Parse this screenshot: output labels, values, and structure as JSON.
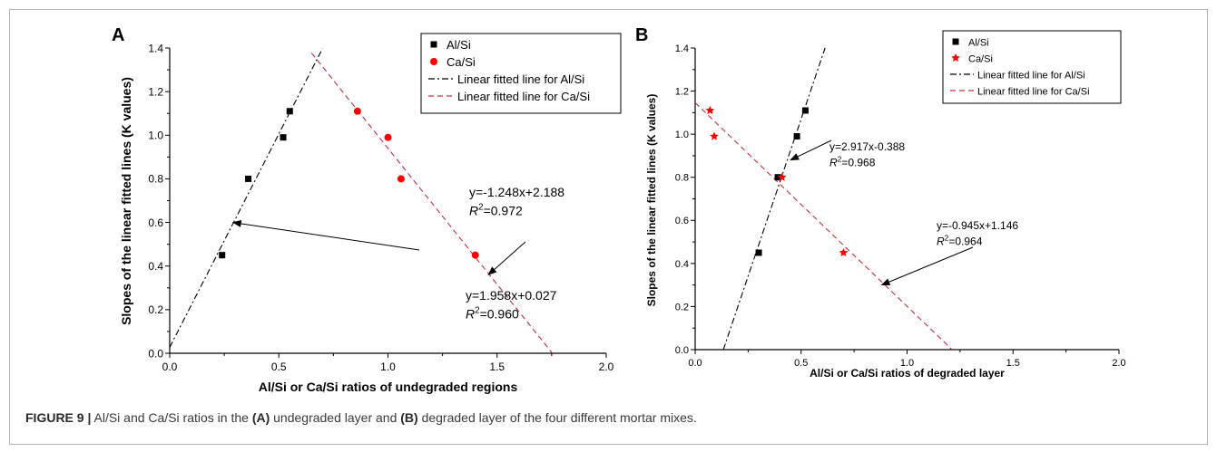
{
  "chart_data": [
    {
      "type": "scatter",
      "panel_label": "A",
      "xlabel": "Al/Si or Ca/Si ratios of undegraded regions",
      "ylabel": "Slopes of the  linear fitted lines (K values)",
      "xlim": [
        0.0,
        2.0
      ],
      "ylim": [
        0.0,
        1.4
      ],
      "x_ticks": [
        "0.0",
        "0.5",
        "1.0",
        "1.5",
        "2.0"
      ],
      "y_ticks": [
        "0.0",
        "0.2",
        "0.4",
        "0.6",
        "0.8",
        "1.0",
        "1.2",
        "1.4"
      ],
      "grid": false,
      "legend_position": "top-right",
      "series": [
        {
          "name": "Al/Si",
          "marker": "square",
          "color": "#000000",
          "points": [
            [
              0.24,
              0.45
            ],
            [
              0.36,
              0.8
            ],
            [
              0.52,
              0.99
            ],
            [
              0.55,
              1.11
            ]
          ]
        },
        {
          "name": "Ca/Si",
          "marker": "circle",
          "color": "#ff0000",
          "points": [
            [
              0.86,
              1.11
            ],
            [
              1.0,
              0.99
            ],
            [
              1.06,
              0.8
            ],
            [
              1.4,
              0.45
            ]
          ]
        }
      ],
      "fit_lines": [
        {
          "name": "Linear fitted line for Al/Si",
          "slope": 1.958,
          "intercept": 0.027,
          "color": "#000000",
          "dash": "dashdot",
          "x_range": [
            0.0,
            0.7
          ]
        },
        {
          "name": "Linear fitted line for Ca/Si",
          "slope": -1.248,
          "intercept": 2.188,
          "color": "#c0303c",
          "dash": "dash",
          "x_range": [
            0.65,
            1.753
          ]
        }
      ],
      "annotations": [
        {
          "eq": "y=1.958x+0.027",
          "r2_prefix": "R",
          "r2_sup": "2",
          "r2_value": "=0.960",
          "arrow_to": [
            0.29,
            0.6
          ]
        },
        {
          "eq": "y=-1.248x+2.188",
          "r2_prefix": "R",
          "r2_sup": "2",
          "r2_value": "=0.972",
          "arrow_to": [
            1.46,
            0.36
          ]
        }
      ]
    },
    {
      "type": "scatter",
      "panel_label": "B",
      "xlabel": "Al/Si or Ca/Si ratios of degraded layer",
      "ylabel": "Slopes of the  linear fitted lines (K values)",
      "xlim": [
        0.0,
        2.0
      ],
      "ylim": [
        0.0,
        1.4
      ],
      "x_ticks": [
        "0.0",
        "0.5",
        "1.0",
        "1.5",
        "2.0"
      ],
      "y_ticks": [
        "0.0",
        "0.2",
        "0.4",
        "0.6",
        "0.8",
        "1.0",
        "1.2",
        "1.4"
      ],
      "grid": false,
      "legend_position": "top-right",
      "series": [
        {
          "name": "Al/Si",
          "marker": "square",
          "color": "#000000",
          "points": [
            [
              0.3,
              0.45
            ],
            [
              0.39,
              0.8
            ],
            [
              0.48,
              0.99
            ],
            [
              0.52,
              1.11
            ]
          ]
        },
        {
          "name": "Ca/Si",
          "marker": "star",
          "color": "#ff0000",
          "points": [
            [
              0.07,
              1.11
            ],
            [
              0.09,
              0.99
            ],
            [
              0.41,
              0.8
            ],
            [
              0.7,
              0.45
            ]
          ]
        }
      ],
      "fit_lines": [
        {
          "name": "Linear fitted line for Al/Si",
          "slope": 2.917,
          "intercept": -0.388,
          "color": "#000000",
          "dash": "dashdot",
          "x_range": [
            0.133,
            0.613
          ]
        },
        {
          "name": "Linear fitted line for Ca/Si",
          "slope": -0.945,
          "intercept": 1.146,
          "color": "#c0303c",
          "dash": "dash",
          "x_range": [
            0.0,
            1.213
          ]
        }
      ],
      "annotations": [
        {
          "eq": "y=2.917x-0.388",
          "r2_prefix": "R",
          "r2_sup": "2",
          "r2_value": "=0.968",
          "arrow_to": [
            0.45,
            0.88
          ]
        },
        {
          "eq": "y=-0.945x+1.146",
          "r2_prefix": "R",
          "r2_sup": "2",
          "r2_value": "=0.964",
          "arrow_to": [
            0.88,
            0.3
          ]
        }
      ]
    }
  ],
  "caption": {
    "label": "FIGURE 9 |",
    "text_1": " Al/Si and Ca/Si ratios in the ",
    "bold_a": "(A)",
    "text_2": " undegraded layer and ",
    "bold_b": "(B)",
    "text_3": " degraded layer of the four different mortar mixes."
  }
}
